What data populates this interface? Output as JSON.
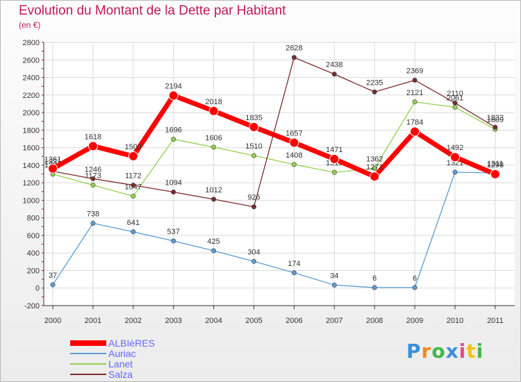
{
  "title": "Evolution du Montant de la Dette par Habitant",
  "subtitle": "(en €)",
  "logo": "Proxiti",
  "chart_data": {
    "type": "line",
    "title": "Evolution du Montant de la Dette par Habitant",
    "subtitle": "(en €)",
    "x": [
      "2000",
      "2001",
      "2002",
      "2003",
      "2004",
      "2005",
      "2006",
      "2007",
      "2008",
      "2009",
      "2010",
      "2011"
    ],
    "ylim": [
      -200,
      2800
    ],
    "yticks": [
      -200,
      0,
      200,
      400,
      600,
      800,
      1000,
      1200,
      1400,
      1600,
      1800,
      2000,
      2200,
      2400,
      2600,
      2800
    ],
    "grid": true,
    "legend": "bottom-left",
    "series": [
      {
        "name": "ALBIèRES",
        "color": "#ff0000",
        "values": [
          1361,
          1618,
          1503,
          2194,
          2018,
          1835,
          1657,
          1471,
          1271,
          1784,
          1492,
          1298
        ],
        "labels": [
          "1361",
          "1618",
          "1503",
          "2194",
          "2018",
          "1835",
          "1657",
          "1471",
          "1271",
          "1784",
          "1492",
          "1298"
        ]
      },
      {
        "name": "Auriac",
        "color": "#5b9bd5",
        "values": [
          37,
          738,
          641,
          537,
          425,
          304,
          174,
          34,
          6,
          6,
          1321,
          1311
        ],
        "labels": [
          "37",
          "738",
          "641",
          "537",
          "425",
          "304",
          "174",
          "34",
          "6",
          "6",
          "1321",
          "1311"
        ]
      },
      {
        "name": "Lanet",
        "color": "#92d050",
        "values": [
          1298,
          1173,
          1047,
          1696,
          1606,
          1510,
          1408,
          1319,
          1362,
          2121,
          2061,
          1809
        ],
        "labels": [
          "1298",
          "1173",
          "1047",
          "1696",
          "1606",
          "1510",
          "1408",
          "1319",
          "1362",
          "2121",
          "2061",
          "1809"
        ]
      },
      {
        "name": "Salza",
        "color": "#7b2c2c",
        "values": [
          1331,
          1246,
          1172,
          1094,
          1012,
          926,
          2628,
          2438,
          2235,
          2369,
          2110,
          1833
        ],
        "labels": [
          "1331",
          "1246",
          "1172",
          "1094",
          "1012",
          "926",
          "2628",
          "2438",
          "2235",
          "2369",
          "2110",
          "1833"
        ]
      }
    ]
  }
}
